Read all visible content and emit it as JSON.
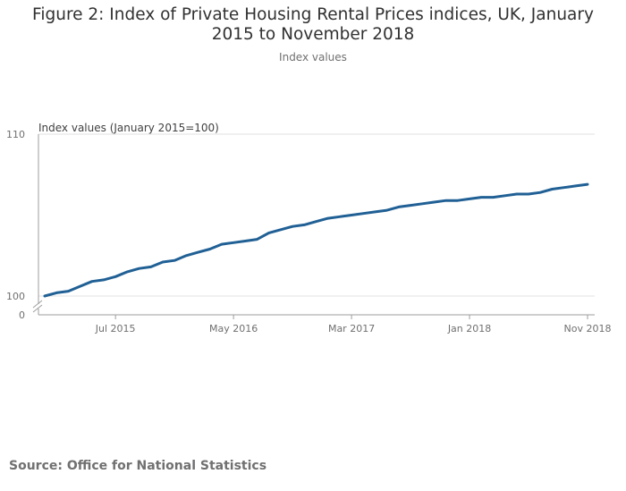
{
  "chart_data": {
    "type": "line",
    "title": "Figure 2: Index of Private Housing Rental Prices indices, UK, January 2015 to November 2018",
    "subtitle": "Index values",
    "ylabel": "Index values (January 2015=100)",
    "xlabel": "",
    "ylim": [
      100,
      110
    ],
    "yticks": [
      "110",
      "100"
    ],
    "y_break_label": "0",
    "xticks": [
      "Jul 2015",
      "May 2016",
      "Mar 2017",
      "Jan 2018",
      "Nov 2018"
    ],
    "xtick_month_index": [
      6,
      16,
      26,
      36,
      46
    ],
    "series": [
      {
        "name": "Index of Private Housing Rental Prices",
        "color": "#206095",
        "values": [
          100.0,
          100.2,
          100.3,
          100.6,
          100.9,
          101.0,
          101.2,
          101.5,
          101.7,
          101.8,
          102.1,
          102.2,
          102.5,
          102.7,
          102.9,
          103.2,
          103.3,
          103.4,
          103.5,
          103.9,
          104.1,
          104.3,
          104.4,
          104.6,
          104.8,
          104.9,
          105.0,
          105.1,
          105.2,
          105.3,
          105.5,
          105.6,
          105.7,
          105.8,
          105.9,
          105.9,
          106.0,
          106.1,
          106.1,
          106.2,
          106.3,
          106.3,
          106.4,
          106.6,
          106.7,
          106.8,
          106.9
        ]
      }
    ]
  },
  "footer": {
    "source": "Source: Office for National Statistics"
  }
}
